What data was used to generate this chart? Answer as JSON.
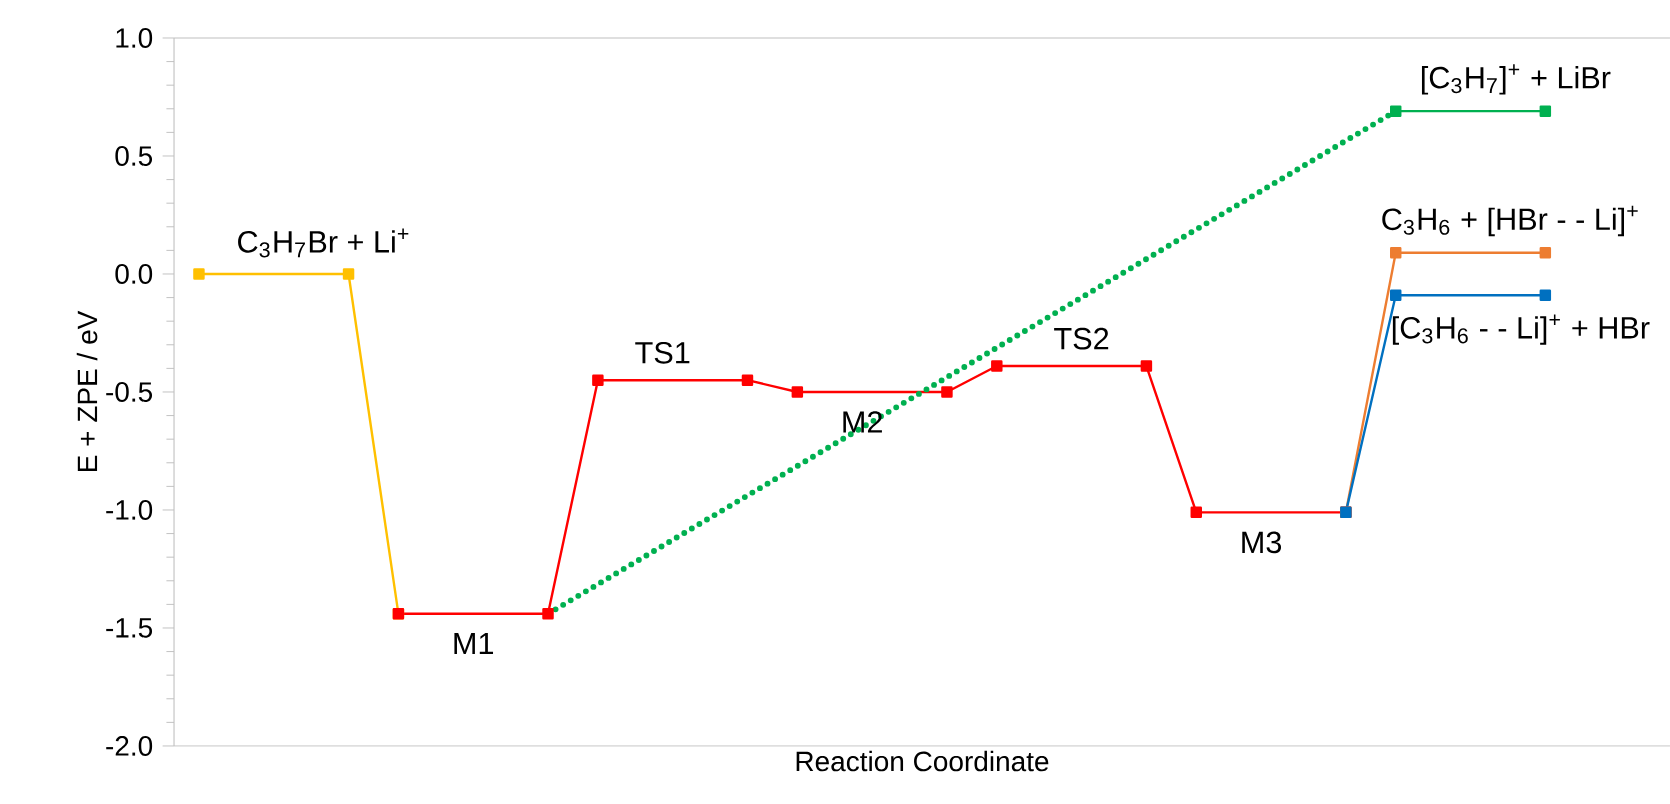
{
  "chart_data": {
    "type": "line",
    "xlabel": "Reaction Coordinate",
    "ylabel": "E + ZPE  / eV",
    "categories": [
      null,
      null,
      null,
      null,
      null,
      null,
      null,
      null,
      null,
      null,
      null,
      null,
      null,
      null,
      null,
      null,
      null,
      null,
      null,
      null,
      null,
      null,
      null,
      null,
      null,
      null,
      null,
      null,
      null,
      null
    ],
    "ylim": [
      -2,
      1
    ],
    "yticks": [
      {
        "value": -2,
        "label": "-2.0"
      },
      {
        "value": -1.5,
        "label": "-1.5"
      },
      {
        "value": -1,
        "label": "-1.0"
      },
      {
        "value": -0.5,
        "label": "-0.5"
      },
      {
        "value": 0,
        "label": "0.0"
      },
      {
        "value": 0.5,
        "label": "0.5"
      },
      {
        "value": 1,
        "label": "1.0"
      }
    ],
    "tick_labels": "y",
    "series": [
      {
        "color": "#ffc000",
        "marker": "square",
        "line_style": "solid",
        "values": [
          0,
          null,
          null,
          0,
          -1.44,
          null,
          null,
          null,
          null,
          null,
          null,
          null,
          null,
          null,
          null,
          null,
          null,
          null,
          null,
          null,
          null,
          null,
          null,
          null,
          null,
          null,
          null,
          null,
          null,
          null
        ]
      },
      {
        "color": "#ff0000",
        "marker": "square",
        "line_style": "solid",
        "values": [
          null,
          null,
          null,
          null,
          -1.44,
          null,
          null,
          -1.44,
          -0.45,
          null,
          null,
          -0.45,
          -0.5,
          null,
          null,
          -0.5,
          -0.39,
          null,
          null,
          -0.39,
          -1.01,
          null,
          null,
          -1.01,
          null,
          null,
          null,
          null,
          null,
          null
        ]
      },
      {
        "color": "#00b050",
        "line_style": "dotted",
        "values": [
          null,
          null,
          null,
          null,
          null,
          null,
          null,
          -1.44,
          null,
          null,
          null,
          null,
          null,
          null,
          null,
          null,
          null,
          null,
          null,
          null,
          null,
          null,
          null,
          null,
          0.69,
          null,
          null,
          null,
          null,
          null
        ]
      },
      {
        "color": "#00b050",
        "marker": "square",
        "line_style": "solid",
        "values": [
          null,
          null,
          null,
          null,
          null,
          null,
          null,
          null,
          null,
          null,
          null,
          null,
          null,
          null,
          null,
          null,
          null,
          null,
          null,
          null,
          null,
          null,
          null,
          null,
          0.69,
          null,
          null,
          0.69,
          null,
          null
        ]
      },
      {
        "color": "#ed7d31",
        "marker": "square",
        "line_style": "solid",
        "values": [
          null,
          null,
          null,
          null,
          null,
          null,
          null,
          null,
          null,
          null,
          null,
          null,
          null,
          null,
          null,
          null,
          null,
          null,
          null,
          null,
          null,
          null,
          null,
          -1.01,
          0.09,
          null,
          null,
          0.09,
          null,
          null
        ]
      },
      {
        "color": "#0070c0",
        "marker": "square",
        "line_style": "solid",
        "values": [
          null,
          null,
          null,
          null,
          null,
          null,
          null,
          null,
          null,
          null,
          null,
          null,
          null,
          null,
          null,
          null,
          null,
          null,
          null,
          null,
          null,
          null,
          null,
          -1.01,
          -0.09,
          null,
          null,
          -0.09,
          null,
          null
        ]
      }
    ],
    "annotations": [
      "C$_{3}$H$_{7}$Br  +  Li$^{+}$",
      "M1",
      "TS1",
      "M2",
      "TS2",
      "M3",
      "[C$_{3}$H$_{7}$]$^{+}$ + LiBr",
      "C$_{3}$H$_{6}$ + [HBr - - Li]$^{+}$",
      "[C$_{3}$H$_{6}$ - - Li]$^{+}$ + HBr"
    ]
  }
}
